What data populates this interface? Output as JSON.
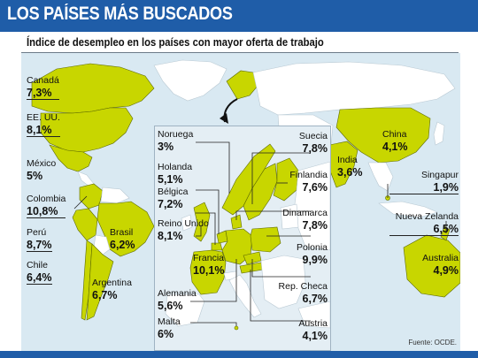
{
  "title": "LOS PAÍSES MÁS BUSCADOS",
  "subtitle": "Índice de desempleo en los países con mayor oferta de trabajo",
  "source": "Fuente: OCDE.",
  "colors": {
    "header": "#1f5da8",
    "highlight_country": "#c8d600",
    "other_land": "#ffffff",
    "sea": "#d9e9f2",
    "inset_sea": "#e4eef4"
  },
  "world_labels": [
    {
      "name": "Canadá",
      "value": "7,3%"
    },
    {
      "name": "EE. UU.",
      "value": "8,1%"
    },
    {
      "name": "México",
      "value": "5%"
    },
    {
      "name": "Colombia",
      "value": "10,8%"
    },
    {
      "name": "Perú",
      "value": "8,7%"
    },
    {
      "name": "Brasil",
      "value": "6,2%"
    },
    {
      "name": "Chile",
      "value": "6,4%"
    },
    {
      "name": "Argentina",
      "value": "6,7%"
    },
    {
      "name": "India",
      "value": "3,6%"
    },
    {
      "name": "China",
      "value": "4,1%"
    },
    {
      "name": "Singapur",
      "value": "1,9%"
    },
    {
      "name": "Nueva Zelanda",
      "value": "6,5%"
    },
    {
      "name": "Australia",
      "value": "4,9%"
    }
  ],
  "europe_labels": [
    {
      "name": "Noruega",
      "value": "3%"
    },
    {
      "name": "Holanda",
      "value": "5,1%"
    },
    {
      "name": "Bélgica",
      "value": "7,2%"
    },
    {
      "name": "Reino Unido",
      "value": "8,1%"
    },
    {
      "name": "Francia",
      "value": "10,1%"
    },
    {
      "name": "Alemania",
      "value": "5,6%"
    },
    {
      "name": "Malta",
      "value": "6%"
    },
    {
      "name": "Suecia",
      "value": "7,8%"
    },
    {
      "name": "Finlandia",
      "value": "7,6%"
    },
    {
      "name": "Dinamarca",
      "value": "7,8%"
    },
    {
      "name": "Polonia",
      "value": "9,9%"
    },
    {
      "name": "Rep. Checa",
      "value": "6,7%"
    },
    {
      "name": "Austria",
      "value": "4,1%"
    }
  ]
}
